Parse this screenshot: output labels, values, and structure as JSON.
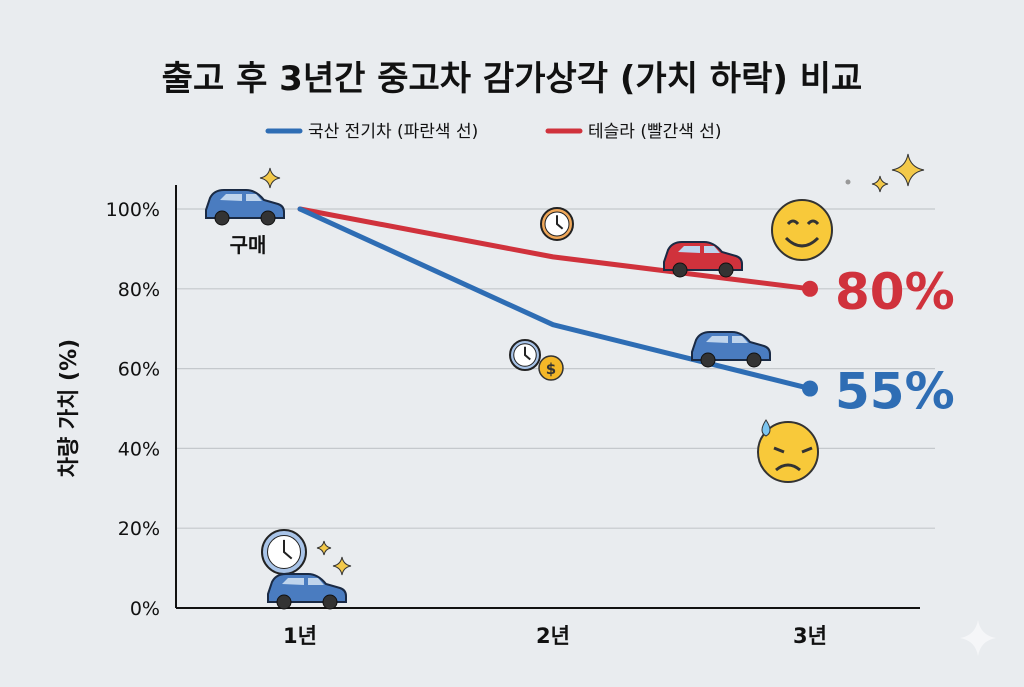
{
  "chart_data": {
    "type": "line",
    "title": "출고 후 3년간 중고차 감가상각 (가치 하락) 비교",
    "xlabel": "",
    "ylabel": "차량 가치 (%)",
    "categories": [
      "1년",
      "2년",
      "3년"
    ],
    "yticks": [
      "0%",
      "20%",
      "40%",
      "60%",
      "80%",
      "100%"
    ],
    "ylim": [
      0,
      100
    ],
    "grid": true,
    "legend_placement": "top-center",
    "series": [
      {
        "name": "국산 전기차 (파란색 선)",
        "values": [
          100,
          71,
          55
        ],
        "color": "#2e6db4",
        "end_label": "55%"
      },
      {
        "name": "테슬라 (빨간색 선)",
        "values": [
          100,
          88,
          80
        ],
        "color": "#d0323c",
        "end_label": "80%"
      }
    ],
    "annotations": [
      "구매"
    ],
    "icons": [
      "car-icon",
      "sparkle-icon",
      "clock-icon",
      "coin-icon",
      "smile-emoji-icon",
      "sad-sweat-emoji-icon"
    ]
  }
}
